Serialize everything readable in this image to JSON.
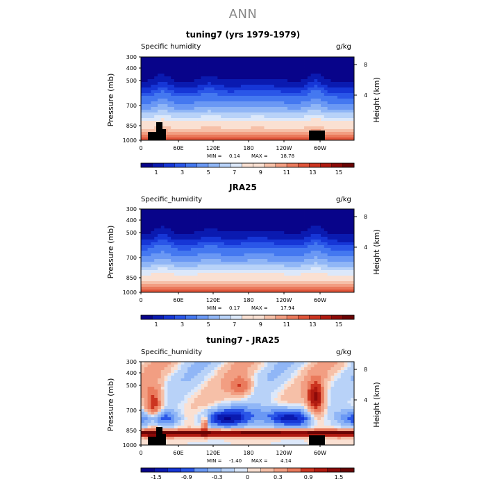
{
  "main_title": "ANN",
  "chart_data": [
    {
      "type": "heatmap",
      "title": "tuning7 (yrs 1979-1979)",
      "variable": "Specific humidity",
      "units": "g/kg",
      "ylabel": "Pressure (mb)",
      "ylabel_right": "Height (km)",
      "yticks": [
        "300",
        "400",
        "500",
        "700",
        "850",
        "1000"
      ],
      "yticks_right": [
        "8",
        "4"
      ],
      "xticks": [
        "0",
        "60E",
        "120E",
        "180",
        "120W",
        "60W"
      ],
      "min_label": "MIN =",
      "min_value": "0.14",
      "max_label": "MAX =",
      "max_value": "18.78",
      "levels": [
        0.5,
        1,
        1.5,
        2,
        3,
        4,
        5,
        6,
        7,
        8,
        9,
        10,
        11,
        12,
        13,
        14,
        15,
        16
      ],
      "colorbar_labels": [
        "1",
        "3",
        "5",
        "7",
        "9",
        "11",
        "13",
        "15"
      ],
      "field": "absolute"
    },
    {
      "type": "heatmap",
      "title": "JRA25",
      "variable": "Specific_humidity",
      "units": "g/kg",
      "ylabel": "Pressure (mb)",
      "ylabel_right": "Height (km)",
      "yticks": [
        "300",
        "400",
        "500",
        "700",
        "850",
        "1000"
      ],
      "yticks_right": [
        "8",
        "4"
      ],
      "xticks": [
        "0",
        "60E",
        "120E",
        "180",
        "120W",
        "60W"
      ],
      "min_label": "MIN =",
      "min_value": "0.17",
      "max_label": "MAX =",
      "max_value": "17.94",
      "levels": [
        0.5,
        1,
        1.5,
        2,
        3,
        4,
        5,
        6,
        7,
        8,
        9,
        10,
        11,
        12,
        13,
        14,
        15,
        16
      ],
      "colorbar_labels": [
        "1",
        "3",
        "5",
        "7",
        "9",
        "11",
        "13",
        "15"
      ],
      "field": "absolute"
    },
    {
      "type": "heatmap",
      "title": "tuning7 - JRA25",
      "variable": "Specific_humidity",
      "units": "g/kg",
      "ylabel": "Pressure (mb)",
      "ylabel_right": "Height (km)",
      "yticks": [
        "300",
        "400",
        "500",
        "700",
        "850",
        "1000"
      ],
      "yticks_right": [
        "8",
        "4"
      ],
      "xticks": [
        "0",
        "60E",
        "120E",
        "180",
        "120W",
        "60W"
      ],
      "min_label": "MIN =",
      "min_value": "-1.40",
      "max_label": "MAX =",
      "max_value": "4.14",
      "levels": [
        -1.8,
        -1.5,
        -1.2,
        -0.9,
        -0.6,
        -0.3,
        -0.1,
        0,
        0.1,
        0.3,
        0.6,
        0.9,
        1.2,
        1.5,
        1.8
      ],
      "colorbar_labels": [
        "-1.5",
        "-0.9",
        "-0.3",
        "0",
        "0.3",
        "0.9",
        "1.5"
      ],
      "field": "difference"
    }
  ],
  "palette": [
    "#08048a",
    "#0a1ab0",
    "#1636d6",
    "#2a56e8",
    "#4478f0",
    "#6a98f4",
    "#90b6f6",
    "#b8d2f8",
    "#dce8fa",
    "#fae0d2",
    "#f6c0a8",
    "#f29e82",
    "#ea7a5c",
    "#e0553a",
    "#cc3420",
    "#b01a10",
    "#8c0a08",
    "#6a0404"
  ]
}
